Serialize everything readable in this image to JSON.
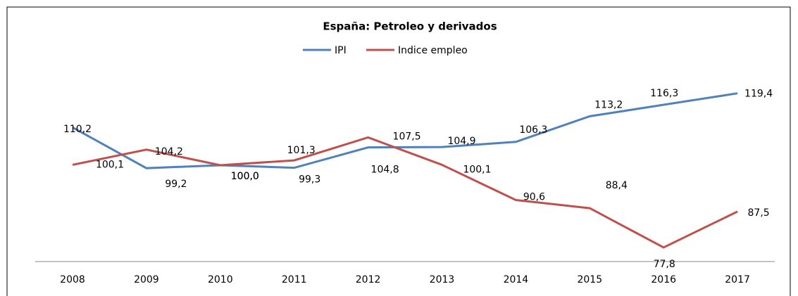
{
  "chart_data": {
    "type": "line",
    "title": "España:  Petroleo y derivados",
    "categories": [
      "2008",
      "2009",
      "2010",
      "2011",
      "2012",
      "2013",
      "2014",
      "2015",
      "2016",
      "2017"
    ],
    "ylim": [
      74,
      122
    ],
    "series": [
      {
        "name": "IPI",
        "color": "#4f81bd",
        "values": [
          110.2,
          99.2,
          100.0,
          99.3,
          104.8,
          104.9,
          106.3,
          113.2,
          116.3,
          119.4
        ],
        "value_labels": [
          "110,2",
          "99,2",
          "100,0",
          "99,3",
          "104,8",
          "104,9",
          "106,3",
          "113,2",
          "116,3",
          "119,4"
        ]
      },
      {
        "name": "Indice empleo",
        "color": "#c0504d",
        "values": [
          100.1,
          104.2,
          100.0,
          101.3,
          107.5,
          100.1,
          90.6,
          88.4,
          77.8,
          87.5
        ],
        "value_labels": [
          "100,1",
          "104,2",
          "100,0",
          "101,3",
          "107,5",
          "100,1",
          "90,6",
          "88,4",
          "77,8",
          "87,5"
        ]
      }
    ]
  }
}
